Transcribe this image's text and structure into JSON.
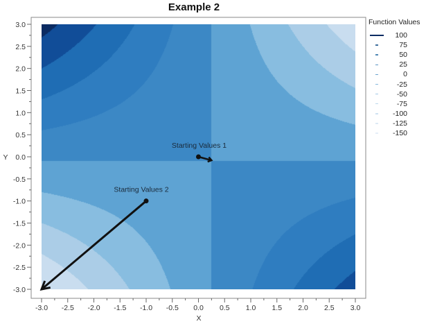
{
  "chart_data": {
    "type": "contour",
    "title": "Example 2",
    "xlabel": "X",
    "ylabel": "Y",
    "xlim": [
      -3,
      3
    ],
    "ylim": [
      -3,
      3
    ],
    "x_ticks": [
      "-3.0",
      "-2.5",
      "-2.0",
      "-1.5",
      "-1.0",
      "-0.5",
      "0.0",
      "0.5",
      "1.0",
      "1.5",
      "2.0",
      "2.5",
      "3.0"
    ],
    "y_ticks": [
      "3.0",
      "2.5",
      "2.0",
      "1.5",
      "1.0",
      "0.5",
      "0.0",
      "-0.5",
      "-1.0",
      "-1.5",
      "-2.0",
      "-2.5",
      "-3.0"
    ],
    "legend": {
      "title": "Function Values",
      "placement": "right",
      "levels": [
        "100",
        "75",
        "50",
        "25",
        "0",
        "-25",
        "-50",
        "-75",
        "-100",
        "-125",
        "-150"
      ]
    },
    "surface": {
      "description_formula": "f = -11*(x-0.25)*(y+0.1)",
      "saddle": [
        0.25,
        -0.1
      ]
    },
    "band_colors": [
      {
        "min": 100,
        "color": "#0b2b62"
      },
      {
        "min": 75,
        "color": "#114d98"
      },
      {
        "min": 50,
        "color": "#1f6db4"
      },
      {
        "min": 25,
        "color": "#2f7dc0"
      },
      {
        "min": 0,
        "color": "#3c88c5"
      },
      {
        "min": -25,
        "color": "#5ea3d3"
      },
      {
        "min": -50,
        "color": "#88bde0"
      },
      {
        "min": -75,
        "color": "#abcde7"
      },
      {
        "min": -100,
        "color": "#c9ddef"
      },
      {
        "min": -1000,
        "color": "#dfeaf6"
      }
    ],
    "annotations": [
      {
        "label": "Starting Values 1",
        "start": [
          0.0,
          0.0
        ],
        "end": [
          0.25,
          -0.08
        ]
      },
      {
        "label": "Starting Values 2",
        "start": [
          -1.0,
          -1.0
        ],
        "end": [
          -3.0,
          -3.0
        ]
      }
    ]
  }
}
